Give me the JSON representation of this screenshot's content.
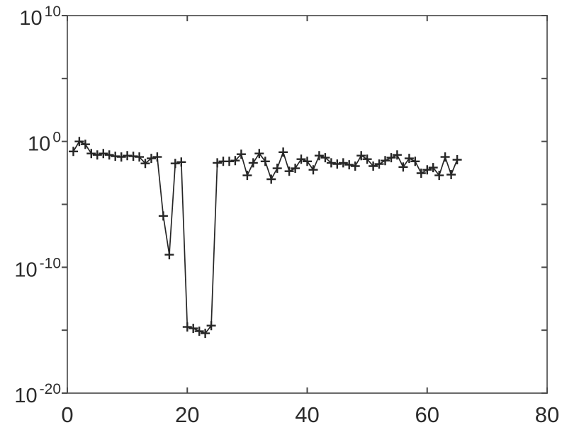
{
  "figure": {
    "background": "#ffffff",
    "spine_color": "#6a6a6a",
    "tick_color": "#4a4a4a",
    "text_color": "#2b2b2b",
    "line_color": "#262626"
  },
  "chart_data": {
    "type": "line",
    "scale": "semilogy",
    "title": "",
    "xlabel": "",
    "ylabel": "",
    "legend": null,
    "grid": false,
    "marker": "+",
    "xlim": [
      0,
      80
    ],
    "ylim_exp": [
      -20,
      10
    ],
    "x_tick_labels": [
      "0",
      "20",
      "40",
      "60",
      "80"
    ],
    "x_tick_values": [
      0,
      20,
      40,
      60,
      80
    ],
    "y_tick_exps_all": [
      10,
      5,
      0,
      -5,
      -10,
      -15,
      -20
    ],
    "y_tick_labeled": [
      {
        "base": "10",
        "exp": "10",
        "value_exp": 10
      },
      {
        "base": "10",
        "exp": "0",
        "value_exp": 0
      },
      {
        "base": "10",
        "exp": "-10",
        "value_exp": -10
      },
      {
        "base": "10",
        "exp": "-20",
        "value_exp": -20
      }
    ],
    "x": [
      1,
      2,
      3,
      4,
      5,
      6,
      7,
      8,
      9,
      10,
      11,
      12,
      13,
      14,
      15,
      16,
      17,
      18,
      19,
      20,
      21,
      22,
      23,
      24,
      25,
      26,
      27,
      28,
      29,
      30,
      31,
      32,
      33,
      34,
      35,
      36,
      37,
      38,
      39,
      40,
      41,
      42,
      43,
      44,
      45,
      46,
      47,
      48,
      49,
      50,
      51,
      52,
      53,
      54,
      55,
      56,
      57,
      58,
      59,
      60,
      61,
      62,
      63,
      64,
      65
    ],
    "values": [
      0.16,
      1.0,
      0.59,
      0.11,
      0.085,
      0.11,
      0.085,
      0.066,
      0.058,
      0.075,
      0.066,
      0.058,
      0.018,
      0.045,
      0.058,
      1.2e-06,
      1e-09,
      0.018,
      0.023,
      1.8e-15,
      1.4e-15,
      8.3e-16,
      5.6e-16,
      2.3e-15,
      0.02,
      0.026,
      0.026,
      0.03,
      0.097,
      0.002,
      0.02,
      0.11,
      0.026,
      0.001,
      0.0073,
      0.14,
      0.0043,
      0.0073,
      0.039,
      0.026,
      0.0056,
      0.075,
      0.051,
      0.02,
      0.016,
      0.02,
      0.014,
      0.011,
      0.075,
      0.039,
      0.011,
      0.016,
      0.03,
      0.051,
      0.085,
      0.0093,
      0.045,
      0.026,
      0.003,
      0.0056,
      0.0083,
      0.002,
      0.058,
      0.0023,
      0.035
    ]
  }
}
